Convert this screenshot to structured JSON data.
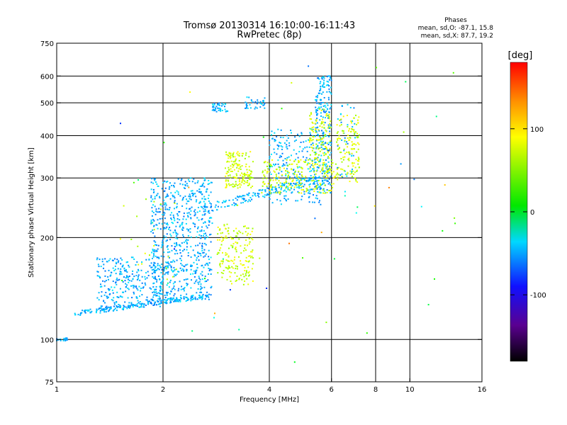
{
  "chart_data": {
    "type": "scatter",
    "title_line1": "Tromsø 20130314 16:10:00-16:11:43",
    "title_line2": "RwPretec (8p)",
    "xlabel": "Frequency [MHz]",
    "ylabel": "Stationary phase Virtual Height [km]",
    "x_scale": "log2",
    "y_scale": "log",
    "xlim": [
      1,
      16
    ],
    "ylim": [
      75,
      750
    ],
    "x_ticks": [
      1,
      2,
      4,
      6,
      8,
      10,
      16
    ],
    "x_tick_labels": [
      "1",
      "2",
      "4",
      "6",
      "8",
      "10",
      "16"
    ],
    "y_ticks": [
      75,
      100,
      200,
      300,
      400,
      500,
      600,
      750
    ],
    "y_tick_labels": [
      "75",
      "100",
      "200",
      "300",
      "400",
      "500",
      "600",
      "750"
    ],
    "grid": true,
    "info": {
      "heading": "Phases",
      "line_o": "mean, sd,O: -87.1, 15.8",
      "line_x": "mean, sd,X: 87.7, 19.2"
    },
    "colorbar": {
      "label": "[deg]",
      "range": [
        -180,
        180
      ],
      "ticks": [
        100,
        0,
        -100
      ],
      "tick_labels": [
        "100",
        "0",
        "-100"
      ]
    },
    "point_groups": [
      {
        "phase": -85,
        "count": 20,
        "x": [
          1.0,
          1.08
        ],
        "y": [
          99,
          101
        ]
      },
      {
        "phase": -85,
        "count": 200,
        "x": [
          1.12,
          2.7
        ],
        "y": [
          117,
          135
        ],
        "trace": true
      },
      {
        "phase": -85,
        "count": 260,
        "x": [
          1.3,
          2.0
        ],
        "y": [
          125,
          175
        ]
      },
      {
        "phase": -85,
        "count": 700,
        "x": [
          1.85,
          2.75
        ],
        "y": [
          130,
          300
        ]
      },
      {
        "phase": -85,
        "count": 180,
        "x": [
          2.6,
          5.5
        ],
        "y": [
          235,
          300
        ],
        "trace": true
      },
      {
        "phase": -85,
        "count": 40,
        "x": [
          2.75,
          3.05
        ],
        "y": [
          470,
          500
        ]
      },
      {
        "phase": -85,
        "count": 35,
        "x": [
          3.4,
          3.9
        ],
        "y": [
          480,
          520
        ]
      },
      {
        "phase": -85,
        "count": 260,
        "x": [
          4.0,
          5.8
        ],
        "y": [
          250,
          420
        ]
      },
      {
        "phase": -85,
        "count": 220,
        "x": [
          5.4,
          6.0
        ],
        "y": [
          270,
          600
        ]
      },
      {
        "phase": -85,
        "count": 40,
        "x": [
          6.2,
          7.0
        ],
        "y": [
          300,
          500
        ]
      },
      {
        "phase": 85,
        "count": 160,
        "x": [
          3.0,
          3.6
        ],
        "y": [
          280,
          360
        ]
      },
      {
        "phase": 85,
        "count": 170,
        "x": [
          2.85,
          3.6
        ],
        "y": [
          145,
          220
        ]
      },
      {
        "phase": 85,
        "count": 200,
        "x": [
          3.8,
          6.2
        ],
        "y": [
          270,
          340
        ]
      },
      {
        "phase": 85,
        "count": 130,
        "x": [
          5.2,
          6.0
        ],
        "y": [
          310,
          480
        ]
      },
      {
        "phase": 85,
        "count": 130,
        "x": [
          6.2,
          7.2
        ],
        "y": [
          290,
          460
        ]
      },
      {
        "phase": 85,
        "count": 20,
        "x": [
          1.4,
          2.2
        ],
        "y": [
          150,
          270
        ]
      },
      {
        "phase": 0,
        "count": 60,
        "x": [
          1.5,
          14.0
        ],
        "y": [
          85,
          650
        ]
      }
    ]
  }
}
